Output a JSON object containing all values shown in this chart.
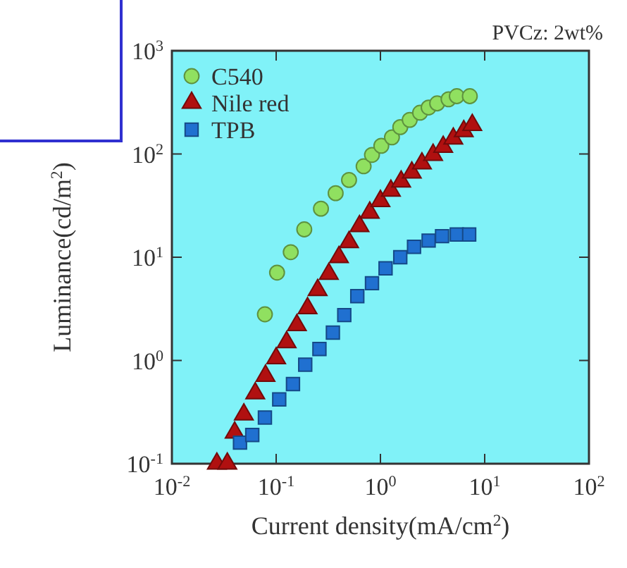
{
  "chart_data": {
    "type": "scatter",
    "xlabel": "Current density(mA/cm$^{2}$)",
    "ylabel": "Luminance(cd/m$^{2}$)",
    "annotations": [
      "PVCz: 2wt%"
    ],
    "log": "xy",
    "xlim": [
      0.01,
      100
    ],
    "ylim": [
      0.1,
      1000
    ],
    "xticks": [
      {
        "value": 0.01,
        "label": "10$^{-2}$"
      },
      {
        "value": 0.1,
        "label": "10$^{-1}$"
      },
      {
        "value": 1,
        "label": "10$^{0}$"
      },
      {
        "value": 10,
        "label": "10$^{1}$"
      },
      {
        "value": 100,
        "label": "10$^{2}$"
      }
    ],
    "yticks": [
      {
        "value": 0.1,
        "label": "10$^{-1}$"
      },
      {
        "value": 1,
        "label": "10$^{0}$"
      },
      {
        "value": 10,
        "label": "10$^{1}$"
      },
      {
        "value": 100,
        "label": "10$^{2}$"
      },
      {
        "value": 1000,
        "label": "10$^{3}$"
      }
    ],
    "legend": "top left",
    "grid": false,
    "series": [
      {
        "name": "C540",
        "color": "#90e060",
        "marker": "circle",
        "x": [
          0.078,
          0.102,
          0.138,
          0.186,
          0.269,
          0.372,
          0.5,
          0.69,
          0.83,
          1.02,
          1.29,
          1.55,
          1.91,
          2.4,
          2.9,
          3.5,
          4.5,
          5.4,
          7.2
        ],
        "values": [
          2.8,
          7.1,
          11.2,
          18.6,
          29.5,
          41.7,
          56,
          76,
          98,
          120,
          145,
          182,
          214,
          251,
          282,
          309,
          339,
          363,
          363
        ]
      },
      {
        "name": "Nile red",
        "color": "#b01010",
        "marker": "triangle",
        "x": [
          0.027,
          0.034,
          0.04,
          0.049,
          0.063,
          0.079,
          0.1,
          0.126,
          0.158,
          0.2,
          0.25,
          0.32,
          0.4,
          0.5,
          0.63,
          0.79,
          1.0,
          1.26,
          1.58,
          2.0,
          2.5,
          3.2,
          4.0,
          5.0,
          6.3,
          7.6
        ],
        "values": [
          0.1,
          0.1,
          0.2,
          0.3,
          0.48,
          0.71,
          1.05,
          1.5,
          2.2,
          3.2,
          4.8,
          6.9,
          10,
          14,
          20,
          27,
          35,
          44,
          54,
          66,
          81,
          98,
          117,
          141,
          166,
          191
        ]
      },
      {
        "name": "TPB",
        "color": "#2070d0",
        "marker": "square",
        "x": [
          0.045,
          0.059,
          0.078,
          0.107,
          0.145,
          0.19,
          0.26,
          0.35,
          0.45,
          0.6,
          0.83,
          1.12,
          1.55,
          2.1,
          2.9,
          3.9,
          5.4,
          7.1
        ],
        "values": [
          0.16,
          0.19,
          0.28,
          0.42,
          0.59,
          0.91,
          1.29,
          1.86,
          2.75,
          4.2,
          5.6,
          7.8,
          10,
          12.6,
          14.5,
          16,
          16.6,
          16.6
        ]
      }
    ]
  }
}
